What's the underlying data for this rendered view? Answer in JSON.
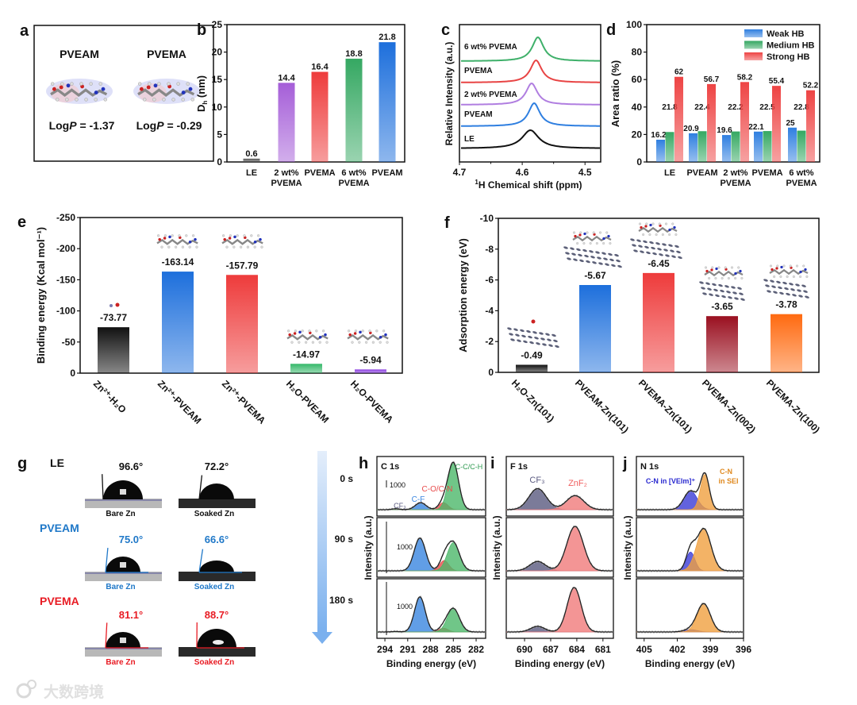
{
  "panel_labels": {
    "a": "a",
    "b": "b",
    "c": "c",
    "d": "d",
    "e": "e",
    "f": "f",
    "g": "g",
    "h": "h",
    "i": "i",
    "j": "j"
  },
  "watermark": "大数跨境",
  "chart_data": [
    {
      "panel": "a",
      "type": "other",
      "molecules": [
        {
          "name": "PVEAM",
          "logp_prefix": "Log",
          "logp_var": "P",
          "logp_value": " = -1.37"
        },
        {
          "name": "PVEMA",
          "logp_prefix": "Log",
          "logp_var": "P",
          "logp_value": " = -0.29"
        }
      ]
    },
    {
      "panel": "b",
      "type": "bar",
      "categories": [
        [
          "LE"
        ],
        [
          "2 wt%",
          "PVEMA"
        ],
        [
          "PVEMA"
        ],
        [
          "6 wt%",
          "PVEMA"
        ],
        [
          "PVEAM"
        ]
      ],
      "values": [
        0.6,
        14.4,
        16.4,
        18.8,
        21.8
      ],
      "colors": [
        "#555555",
        "#a55ed8",
        "#ee3b3b",
        "#35a862",
        "#1d6fdc"
      ],
      "ylabel_main": "D",
      "ylabel_sub": "h",
      "ylabel_unit": " (nm)",
      "ylim": [
        0,
        25
      ],
      "yticks": [
        0,
        5,
        10,
        15,
        20,
        25
      ]
    },
    {
      "panel": "c",
      "type": "line",
      "series": [
        {
          "name": "LE",
          "peak": 4.587,
          "color": "#111111"
        },
        {
          "name": "PVEAM",
          "peak": 4.581,
          "color": "#2f7fe0"
        },
        {
          "name": "2 wt% PVEMA",
          "peak": 4.585,
          "color": "#b07ee0"
        },
        {
          "name": "PVEMA",
          "peak": 4.578,
          "color": "#e84444"
        },
        {
          "name": "6 wt% PVEMA",
          "peak": 4.575,
          "color": "#3fb06a"
        }
      ],
      "xlabel_sup": "1",
      "xlabel": "H Chemical shift (ppm)",
      "ylabel": "Relative Intensity (a.u.)",
      "xlim": [
        4.7,
        4.475
      ],
      "xticks": [
        4.7,
        4.6,
        4.5
      ]
    },
    {
      "panel": "d",
      "type": "bar",
      "categories": [
        [
          "LE"
        ],
        [
          "PVEAM"
        ],
        [
          "2 wt%",
          "PVEMA"
        ],
        [
          "PVEMA"
        ],
        [
          "6 wt%",
          "PVEMA"
        ]
      ],
      "series": [
        {
          "name": "Weak HB",
          "color": "#2f7fe0",
          "values": [
            16.2,
            20.9,
            19.6,
            22.1,
            25
          ]
        },
        {
          "name": "Medium HB",
          "color": "#35a862",
          "values": [
            21.8,
            22.4,
            22.2,
            22.5,
            22.8
          ]
        },
        {
          "name": "Strong HB",
          "color": "#ee4444",
          "values": [
            62,
            56.7,
            58.2,
            55.4,
            52.2
          ]
        }
      ],
      "ylabel": "Area ratio (%)",
      "ylim": [
        0,
        100
      ],
      "yticks": [
        0,
        20,
        40,
        60,
        80,
        100
      ],
      "legend": "top-right"
    },
    {
      "panel": "e",
      "type": "bar",
      "categories": [
        "Zn²⁺-H₂O",
        "Zn²⁺-PVEAM",
        "Zn²⁺-PVEMA",
        "H₂O-PVEAM",
        "H₂O-PVEMA"
      ],
      "values": [
        -73.77,
        -163.14,
        -157.79,
        -14.97,
        -5.94
      ],
      "colors": [
        "#111111",
        "#1d6fdc",
        "#ee3b3b",
        "#35b86a",
        "#8a3ee0"
      ],
      "ylabel": "Binding energy (Kcal mol⁻¹)",
      "ylim": [
        0,
        -250
      ],
      "yticks": [
        0,
        -50,
        -100,
        -150,
        -200,
        -250
      ]
    },
    {
      "panel": "f",
      "type": "bar",
      "categories": [
        "H₂O-Zn(101)",
        "PVEAM-Zn(101)",
        "PVEMA-Zn(101)",
        "PVEMA-Zn(002)",
        "PVEMA-Zn(100)"
      ],
      "values": [
        -0.49,
        -5.67,
        -6.45,
        -3.65,
        -3.78
      ],
      "colors": [
        "#111111",
        "#1d6fdc",
        "#ee3b3b",
        "#9a1020",
        "#ff6a10"
      ],
      "ylabel": "Adsorption energy (eV)",
      "ylim": [
        0,
        -10
      ],
      "yticks": [
        0,
        -2,
        -4,
        -6,
        -8,
        -10
      ]
    },
    {
      "panel": "g",
      "type": "other",
      "rows": [
        {
          "name": "LE",
          "color": "#111111",
          "bare_angle": "96.6°",
          "soaked_angle": "72.2°",
          "bare_label": "Bare Zn",
          "soaked_label": "Soaked Zn"
        },
        {
          "name": "PVEAM",
          "color": "#1f78c8",
          "bare_angle": "75.0°",
          "soaked_angle": "66.6°",
          "bare_label": "Bare Zn",
          "soaked_label": "Soaked Zn"
        },
        {
          "name": "PVEMA",
          "color": "#e81c24",
          "bare_angle": "81.1°",
          "soaked_angle": "88.7°",
          "bare_label": "Bare Zn",
          "soaked_label": "Soaked Zn"
        }
      ]
    },
    {
      "panel": "h",
      "type": "line",
      "title": "C 1s",
      "times": [
        "0 s",
        "90 s",
        "180 s"
      ],
      "scale_bar": "1000",
      "xlabel": "Binding energy (eV)",
      "ylabel": "Intensity (a.u.)",
      "xlim": [
        295.05,
        280.75
      ],
      "xticks": [
        294,
        291,
        288,
        285,
        282
      ],
      "components": [
        {
          "label": "CF₃",
          "color": "#5a5a80"
        },
        {
          "label": "C-F",
          "color": "#3a86e0"
        },
        {
          "label": "C-O/C-N",
          "color": "#e94b4b"
        },
        {
          "label": "C-C/C-H",
          "color": "#4cb86a"
        }
      ],
      "spectra": [
        [
          [
            292.6,
            0.02,
            0.5
          ],
          [
            289.3,
            0.15,
            0.7
          ],
          [
            286.3,
            0.15,
            0.6
          ],
          [
            285.0,
            1.0,
            0.7
          ]
        ],
        [
          [
            292.6,
            0.0,
            0.5
          ],
          [
            289.4,
            0.7,
            0.75
          ],
          [
            286.2,
            0.22,
            0.6
          ],
          [
            285.0,
            0.6,
            0.8
          ]
        ],
        [
          [
            292.6,
            0.01,
            0.5
          ],
          [
            289.4,
            0.75,
            0.7
          ],
          [
            286.3,
            0.08,
            0.6
          ],
          [
            285.0,
            0.5,
            0.8
          ]
        ]
      ]
    },
    {
      "panel": "i",
      "type": "line",
      "title": "F 1s",
      "xlabel": "Binding energy (eV)",
      "ylabel": "Intensity (a.u.)",
      "xlim": [
        692.1,
        679.8
      ],
      "xticks": [
        690,
        687,
        684,
        681
      ],
      "components": [
        {
          "label": "CF₃",
          "color": "#5a5a80"
        },
        {
          "label": "ZnF₂",
          "color": "#f07a7a"
        }
      ],
      "spectra": [
        [
          [
            688.5,
            0.45,
            1.0
          ],
          [
            684.2,
            0.3,
            1.0
          ]
        ],
        [
          [
            688.5,
            0.2,
            0.9
          ],
          [
            684.2,
            0.95,
            0.95
          ]
        ],
        [
          [
            688.5,
            0.12,
            0.8
          ],
          [
            684.3,
            0.95,
            0.8
          ]
        ]
      ]
    },
    {
      "panel": "j",
      "type": "line",
      "title": "N 1s",
      "xlabel": "Binding energy (eV)",
      "ylabel": "Intensity (a.u.)",
      "xlim": [
        405.7,
        396.0
      ],
      "xticks": [
        405,
        402,
        399,
        396
      ],
      "components": [
        {
          "label": "C-N in [VEIm]⁺",
          "color": "#3b3bd6"
        },
        {
          "label": "C-N",
          "label2": "in SEI",
          "color": "#f0a040"
        }
      ],
      "spectra": [
        [
          [
            400.8,
            0.4,
            0.6
          ],
          [
            399.5,
            0.75,
            0.4
          ]
        ],
        [
          [
            400.8,
            0.4,
            0.4
          ],
          [
            399.6,
            0.9,
            0.65
          ]
        ],
        [
          [
            400.8,
            0.05,
            0.6
          ],
          [
            399.6,
            0.6,
            0.6
          ]
        ]
      ]
    }
  ]
}
